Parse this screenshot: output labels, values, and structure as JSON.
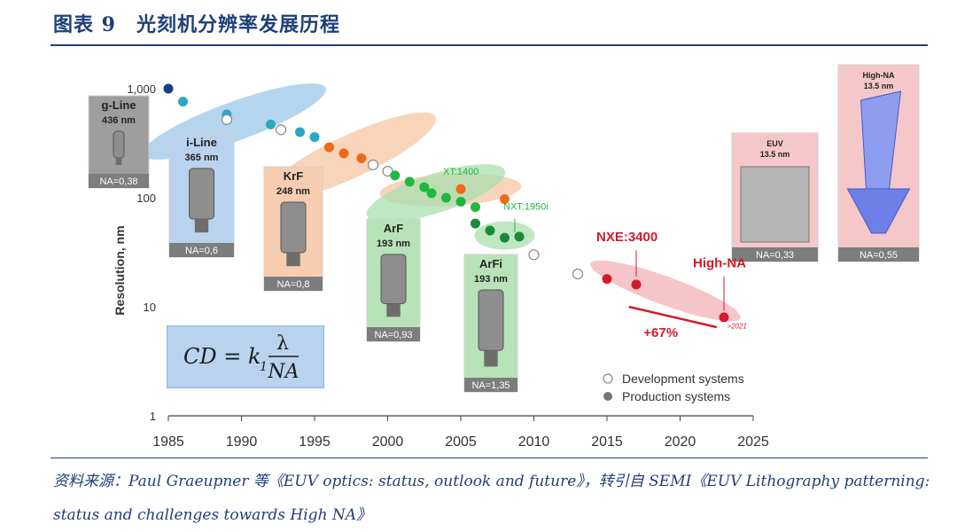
{
  "header": {
    "title": "图表 9　光刻机分辨率发展历程"
  },
  "source": {
    "text": "资料来源：Paul Graeupner 等《EUV optics: status, outlook and future》，转引自 SEMI《EUV Lithography patterning: status and challenges towards High NA》"
  },
  "formula": {
    "lhs": "CD = k",
    "sub": "1",
    "num": "λ",
    "den": "NA"
  },
  "colors": {
    "title": "#1f3f7a",
    "axis": "#333333",
    "gline": "#9e9e9e",
    "iline": "#b9d3ee",
    "krf": "#f6cdb0",
    "arf": "#b8e3b8",
    "arfi": "#b8e3b8",
    "euv": "#f4c7c8",
    "highna_box": "#f4c7c8"
  },
  "chart_data": {
    "type": "scatter",
    "ylabel": "Resolution, nm",
    "xlim": [
      1985,
      2025
    ],
    "ylim": [
      1,
      1000
    ],
    "yscale": "log",
    "x_ticks": [
      "1985",
      "1990",
      "1995",
      "2000",
      "2005",
      "2010",
      "2015",
      "2020",
      "2025"
    ],
    "y_ticks": [
      "1",
      "10",
      "100",
      "1,000"
    ],
    "legend": {
      "position": "bottom-right",
      "items": [
        {
          "label": "Development systems",
          "style": "open"
        },
        {
          "label": "Production systems",
          "style": "filled"
        }
      ]
    },
    "series": [
      {
        "era": "g-Line",
        "color": "#1a3a8a",
        "points": [
          {
            "x": 1985,
            "y": 1000,
            "prod": true
          }
        ]
      },
      {
        "era": "i-Line",
        "color": "#2aa7c2",
        "points": [
          {
            "x": 1986,
            "y": 760,
            "prod": true
          },
          {
            "x": 1989,
            "y": 580,
            "prod": true
          },
          {
            "x": 1989,
            "y": 520,
            "prod": false
          },
          {
            "x": 1992,
            "y": 470,
            "prod": true
          },
          {
            "x": 1992.7,
            "y": 420,
            "prod": false
          },
          {
            "x": 1994,
            "y": 400,
            "prod": true
          },
          {
            "x": 1995,
            "y": 360,
            "prod": true
          }
        ]
      },
      {
        "era": "KrF",
        "color": "#ee6a18",
        "points": [
          {
            "x": 1996,
            "y": 290,
            "prod": true
          },
          {
            "x": 1997,
            "y": 255,
            "prod": true
          },
          {
            "x": 1998.2,
            "y": 230,
            "prod": true
          },
          {
            "x": 1999,
            "y": 200,
            "prod": false
          },
          {
            "x": 2000,
            "y": 175,
            "prod": false
          },
          {
            "x": 2005,
            "y": 120,
            "prod": true
          },
          {
            "x": 2008,
            "y": 97,
            "prod": true
          }
        ]
      },
      {
        "era": "ArF",
        "color": "#1fb83e",
        "points": [
          {
            "x": 2000.5,
            "y": 160,
            "prod": true
          },
          {
            "x": 2001.5,
            "y": 140,
            "prod": true
          },
          {
            "x": 2002.5,
            "y": 125,
            "prod": true
          },
          {
            "x": 2003,
            "y": 110,
            "prod": true
          },
          {
            "x": 2004,
            "y": 100,
            "prod": true
          },
          {
            "x": 2005,
            "y": 92,
            "prod": true
          },
          {
            "x": 2006,
            "y": 82,
            "prod": true
          }
        ]
      },
      {
        "era": "ArFi",
        "color": "#1a8a3a",
        "points": [
          {
            "x": 2006,
            "y": 58,
            "prod": true
          },
          {
            "x": 2007,
            "y": 50,
            "prod": true
          },
          {
            "x": 2008,
            "y": 43,
            "prod": true
          },
          {
            "x": 2009,
            "y": 44,
            "prod": true
          },
          {
            "x": 2010,
            "y": 30,
            "prod": false
          }
        ]
      },
      {
        "era": "EUV",
        "color": "#d41a2a",
        "points": [
          {
            "x": 2013,
            "y": 20,
            "prod": false
          },
          {
            "x": 2015,
            "y": 18,
            "prod": true
          },
          {
            "x": 2017,
            "y": 16,
            "prod": true
          },
          {
            "x": 2023,
            "y": 8,
            "prod": true
          }
        ]
      }
    ],
    "callouts": [
      {
        "text": "XT:1400",
        "x": 2005,
        "y": 120,
        "color": "#1fb83e"
      },
      {
        "text": "NXT:1950i",
        "x": 2009,
        "y": 44,
        "color": "#1fb83e"
      },
      {
        "text": "NXE:3400",
        "x": 2017,
        "y": 16,
        "color": "#d41a2a"
      },
      {
        "text": "High-NA",
        "x": 2023,
        "y": 8,
        "color": "#d41a2a"
      },
      {
        "text": "+67%",
        "color": "#d41a2a"
      },
      {
        "text": ">2021",
        "color": "#d41a2a"
      }
    ],
    "boxes": [
      {
        "label": "g-Line",
        "wl": "436 nm",
        "na": "NA=0,38"
      },
      {
        "label": "i-Line",
        "wl": "365 nm",
        "na": "NA=0,6"
      },
      {
        "label": "KrF",
        "wl": "248 nm",
        "na": "NA=0,8"
      },
      {
        "label": "ArF",
        "wl": "193 nm",
        "na": "NA=0,93"
      },
      {
        "label": "ArFi",
        "wl": "193 nm",
        "na": "NA=1,35"
      },
      {
        "label": "EUV",
        "wl": "13.5 nm",
        "na": "NA=0,33"
      },
      {
        "label": "High-NA",
        "wl": "13.5 nm",
        "na": "NA=0,55"
      }
    ]
  }
}
